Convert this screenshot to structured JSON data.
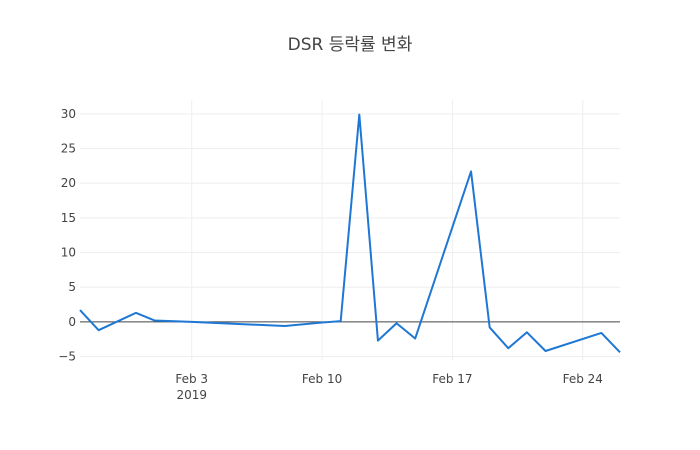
{
  "chart_data": {
    "type": "line",
    "title": "DSR 등락률 변화",
    "xlabel": "",
    "ylabel": "",
    "x_axis": {
      "type": "date",
      "range": [
        "2019-01-28",
        "2019-02-26"
      ],
      "ticks": [
        {
          "date": "2019-02-03",
          "label": "Feb 3",
          "sublabel": "2019"
        },
        {
          "date": "2019-02-10",
          "label": "Feb 10",
          "sublabel": ""
        },
        {
          "date": "2019-02-17",
          "label": "Feb 17",
          "sublabel": ""
        },
        {
          "date": "2019-02-24",
          "label": "Feb 24",
          "sublabel": ""
        }
      ]
    },
    "y_axis": {
      "range": [
        -5.5,
        32
      ],
      "ticks": [
        {
          "value": 30,
          "label": "30"
        },
        {
          "value": 25,
          "label": "25"
        },
        {
          "value": 20,
          "label": "20"
        },
        {
          "value": 15,
          "label": "15"
        },
        {
          "value": 10,
          "label": "10"
        },
        {
          "value": 5,
          "label": "5"
        },
        {
          "value": 0,
          "label": "0"
        },
        {
          "value": -5,
          "label": "−5"
        }
      ]
    },
    "grid": true,
    "zero_line": true,
    "series": [
      {
        "color": "#1f77d4",
        "points": [
          {
            "x": "2019-01-28",
            "y": 1.7
          },
          {
            "x": "2019-01-29",
            "y": -1.2
          },
          {
            "x": "2019-01-31",
            "y": 1.3
          },
          {
            "x": "2019-02-01",
            "y": 0.2
          },
          {
            "x": "2019-02-03",
            "y": 0.0
          },
          {
            "x": "2019-02-08",
            "y": -0.6
          },
          {
            "x": "2019-02-10",
            "y": -0.1
          },
          {
            "x": "2019-02-11",
            "y": 0.1
          },
          {
            "x": "2019-02-12",
            "y": 29.9
          },
          {
            "x": "2019-02-13",
            "y": -2.7
          },
          {
            "x": "2019-02-14",
            "y": -0.2
          },
          {
            "x": "2019-02-15",
            "y": -2.4
          },
          {
            "x": "2019-02-18",
            "y": 21.7
          },
          {
            "x": "2019-02-19",
            "y": -0.8
          },
          {
            "x": "2019-02-20",
            "y": -3.8
          },
          {
            "x": "2019-02-21",
            "y": -1.5
          },
          {
            "x": "2019-02-22",
            "y": -4.2
          },
          {
            "x": "2019-02-25",
            "y": -1.6
          },
          {
            "x": "2019-02-26",
            "y": -4.4
          }
        ]
      }
    ]
  }
}
